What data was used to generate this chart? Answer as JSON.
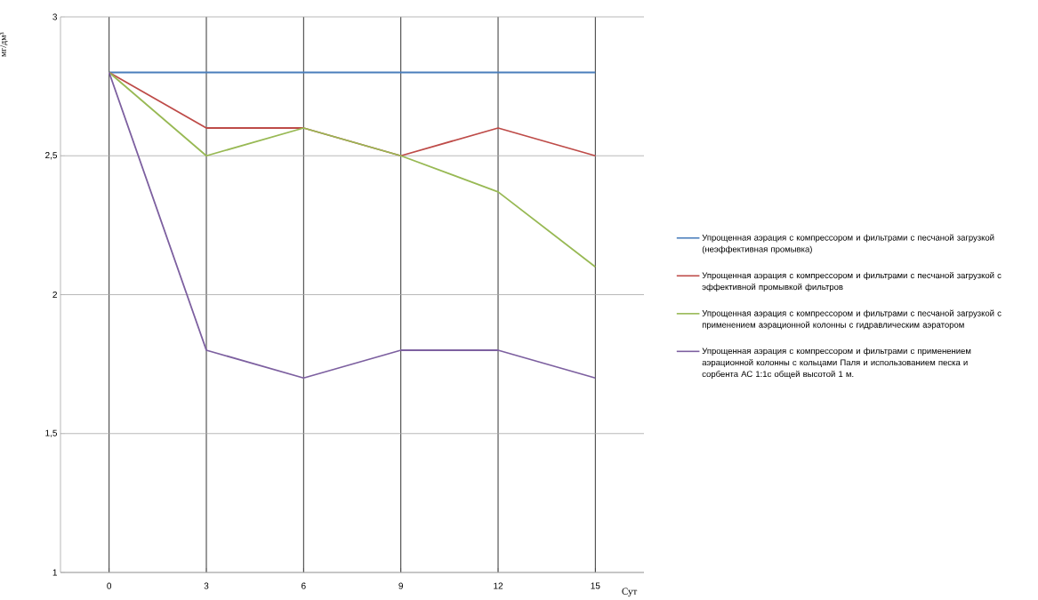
{
  "chart_data": {
    "type": "line",
    "xlabel": "Сут",
    "ylabel": "мг/дм³",
    "categories": [
      "0",
      "3",
      "6",
      "9",
      "12",
      "15"
    ],
    "series": [
      {
        "name": "Упрощенная аэрация с компрессором и фильтрами с песчаной загрузкой (неэффективная промывка)",
        "color": "#4a7ebb",
        "values": [
          2.8,
          2.8,
          2.8,
          2.8,
          2.8,
          2.8
        ]
      },
      {
        "name": "Упрощенная аэрация с компрессором и фильтрами с песчаной загрузкой с эффективной промывкой фильтров",
        "color": "#be4b48",
        "values": [
          2.8,
          2.6,
          2.6,
          2.5,
          2.6,
          2.5
        ]
      },
      {
        "name": "Упрощенная аэрация с компрессором и фильтрами с песчаной загрузкой с применением аэрационной колонны с гидравлическим аэратором",
        "color": "#98b954",
        "values": [
          2.8,
          2.5,
          2.6,
          2.5,
          2.37,
          2.1
        ]
      },
      {
        "name": "Упрощенная аэрация с компрессором и фильтрами с применением аэрационной колонны с кольцами Паля и использованием песка и сорбента АС 1:1с общей высотой 1 м.",
        "color": "#7d60a0",
        "values": [
          2.8,
          1.8,
          1.7,
          1.8,
          1.8,
          1.7
        ]
      }
    ],
    "ylim": [
      1,
      3
    ],
    "yticks": [
      1,
      {
        "value": 1.5,
        "label": "1,5"
      },
      2,
      {
        "value": 2.5,
        "label": "2,5"
      },
      3
    ],
    "grid": true,
    "legend": "right",
    "marker": "none",
    "line_style": "solid"
  }
}
